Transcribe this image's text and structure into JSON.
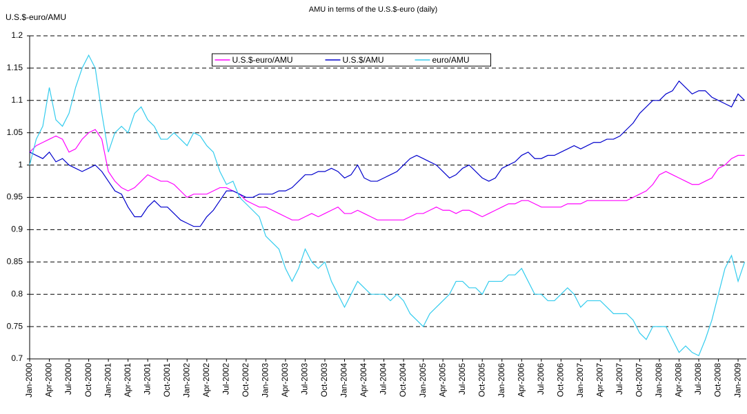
{
  "chart_data": {
    "type": "line",
    "title": "AMU in terms of the U.S.$-euro (daily)",
    "y_label": "U.S.$-euro/AMU",
    "categories": [
      "Jan-2000",
      null,
      null,
      "Apr-2000",
      null,
      null,
      "Jul-2000",
      null,
      null,
      "Oct-2000",
      null,
      null,
      "Jan-2001",
      null,
      null,
      "Apr-2001",
      null,
      null,
      "Jul-2001",
      null,
      null,
      "Oct-2001",
      null,
      null,
      "Jan-2002",
      null,
      null,
      "Apr-2002",
      null,
      null,
      "Jul-2002",
      null,
      null,
      "Oct-2002",
      null,
      null,
      "Jan-2003",
      null,
      null,
      "Apr-2003",
      null,
      null,
      "Jul-2003",
      null,
      null,
      "Oct-2003",
      null,
      null,
      "Jan-2004",
      null,
      null,
      "Apr-2004",
      null,
      null,
      "Jul-2004",
      null,
      null,
      "Oct-2004",
      null,
      null,
      "Jan-2005",
      null,
      null,
      "Apr-2005",
      null,
      null,
      "Jul-2005",
      null,
      null,
      "Oct-2005",
      null,
      null,
      "Jan-2006",
      null,
      null,
      "Apr-2006",
      null,
      null,
      "Jul-2006",
      null,
      null,
      "Oct-2006",
      null,
      null,
      "Jan-2007",
      null,
      null,
      "Apr-2007",
      null,
      null,
      "Jul-2007",
      null,
      null,
      "Oct-2007",
      null,
      null,
      "Jan-2008",
      null,
      null,
      "Apr-2008",
      null,
      null,
      "Jul-2008",
      null,
      null,
      "Oct-2008",
      null,
      null,
      "Jan-2009",
      null
    ],
    "series": [
      {
        "name": "U.S.$-euro/AMU",
        "color": "#ff00ff",
        "values": [
          1.02,
          1.03,
          1.035,
          1.04,
          1.045,
          1.04,
          1.02,
          1.025,
          1.04,
          1.05,
          1.055,
          1.04,
          0.99,
          0.975,
          0.965,
          0.96,
          0.965,
          0.975,
          0.985,
          0.98,
          0.975,
          0.975,
          0.97,
          0.96,
          0.95,
          0.955,
          0.955,
          0.955,
          0.96,
          0.965,
          0.965,
          0.96,
          0.955,
          0.945,
          0.94,
          0.935,
          0.935,
          0.93,
          0.925,
          0.92,
          0.915,
          0.915,
          0.92,
          0.925,
          0.92,
          0.925,
          0.93,
          0.935,
          0.925,
          0.925,
          0.93,
          0.925,
          0.92,
          0.915,
          0.915,
          0.915,
          0.915,
          0.915,
          0.92,
          0.925,
          0.925,
          0.93,
          0.935,
          0.93,
          0.93,
          0.925,
          0.93,
          0.93,
          0.925,
          0.92,
          0.925,
          0.93,
          0.935,
          0.94,
          0.94,
          0.945,
          0.945,
          0.94,
          0.935,
          0.935,
          0.935,
          0.935,
          0.94,
          0.94,
          0.94,
          0.945,
          0.945,
          0.945,
          0.945,
          0.945,
          0.945,
          0.945,
          0.95,
          0.955,
          0.96,
          0.97,
          0.985,
          0.99,
          0.985,
          0.98,
          0.975,
          0.97,
          0.97,
          0.975,
          0.98,
          0.995,
          1.0,
          1.01,
          1.015,
          1.015
        ]
      },
      {
        "name": "U.S.$/AMU",
        "color": "#0000cc",
        "values": [
          1.02,
          1.015,
          1.01,
          1.02,
          1.005,
          1.01,
          1.0,
          0.995,
          0.99,
          0.995,
          1.0,
          0.99,
          0.975,
          0.96,
          0.955,
          0.935,
          0.92,
          0.92,
          0.935,
          0.945,
          0.935,
          0.935,
          0.925,
          0.915,
          0.91,
          0.905,
          0.905,
          0.92,
          0.93,
          0.945,
          0.96,
          0.96,
          0.955,
          0.95,
          0.95,
          0.955,
          0.955,
          0.955,
          0.96,
          0.96,
          0.965,
          0.975,
          0.985,
          0.985,
          0.99,
          0.99,
          0.995,
          0.99,
          0.98,
          0.985,
          1.0,
          0.98,
          0.975,
          0.975,
          0.98,
          0.985,
          0.99,
          1.0,
          1.01,
          1.015,
          1.01,
          1.005,
          1.0,
          0.99,
          0.98,
          0.985,
          0.995,
          1.0,
          0.99,
          0.98,
          0.975,
          0.98,
          0.995,
          1.0,
          1.005,
          1.015,
          1.02,
          1.01,
          1.01,
          1.015,
          1.015,
          1.02,
          1.025,
          1.03,
          1.025,
          1.03,
          1.035,
          1.035,
          1.04,
          1.04,
          1.045,
          1.055,
          1.065,
          1.08,
          1.09,
          1.1,
          1.1,
          1.11,
          1.115,
          1.13,
          1.12,
          1.11,
          1.115,
          1.115,
          1.105,
          1.1,
          1.095,
          1.09,
          1.11,
          1.1
        ]
      },
      {
        "name": "euro/AMU",
        "color": "#33ccee",
        "values": [
          1.0,
          1.04,
          1.06,
          1.12,
          1.07,
          1.06,
          1.08,
          1.12,
          1.15,
          1.17,
          1.15,
          1.08,
          1.02,
          1.05,
          1.06,
          1.05,
          1.08,
          1.09,
          1.07,
          1.06,
          1.04,
          1.04,
          1.05,
          1.04,
          1.03,
          1.05,
          1.045,
          1.03,
          1.02,
          0.99,
          0.97,
          0.975,
          0.95,
          0.94,
          0.93,
          0.92,
          0.89,
          0.88,
          0.87,
          0.84,
          0.82,
          0.84,
          0.87,
          0.85,
          0.84,
          0.85,
          0.82,
          0.8,
          0.78,
          0.8,
          0.82,
          0.81,
          0.8,
          0.8,
          0.8,
          0.79,
          0.8,
          0.79,
          0.77,
          0.76,
          0.75,
          0.77,
          0.78,
          0.79,
          0.8,
          0.82,
          0.82,
          0.81,
          0.81,
          0.8,
          0.82,
          0.82,
          0.82,
          0.83,
          0.83,
          0.84,
          0.82,
          0.8,
          0.8,
          0.79,
          0.79,
          0.8,
          0.81,
          0.8,
          0.78,
          0.79,
          0.79,
          0.79,
          0.78,
          0.77,
          0.77,
          0.77,
          0.76,
          0.74,
          0.73,
          0.75,
          0.75,
          0.75,
          0.73,
          0.71,
          0.72,
          0.71,
          0.705,
          0.73,
          0.76,
          0.8,
          0.84,
          0.86,
          0.82,
          0.85
        ]
      }
    ],
    "ylim": [
      0.7,
      1.2
    ],
    "yticks": [
      0.7,
      0.75,
      0.8,
      0.85,
      0.9,
      0.95,
      1,
      1.05,
      1.1,
      1.15,
      1.2
    ],
    "grid": true,
    "legend": "top-center"
  }
}
